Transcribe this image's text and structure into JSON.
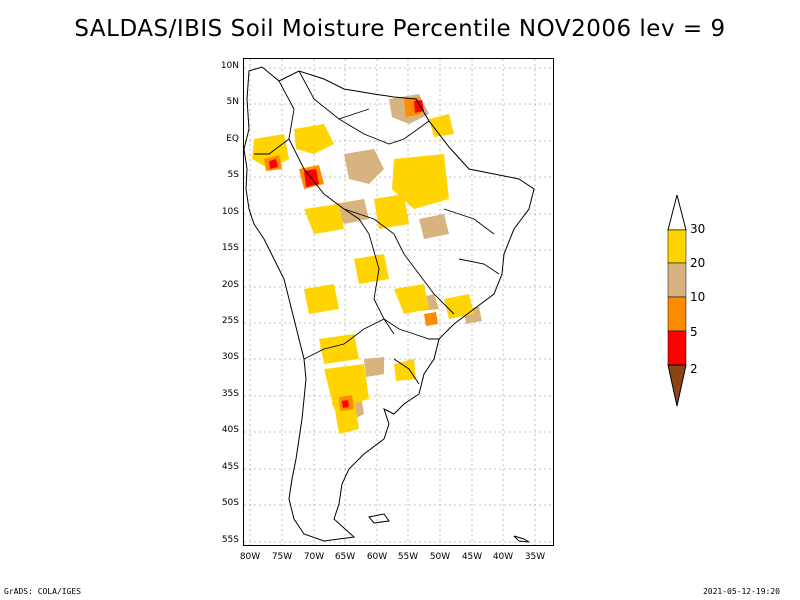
{
  "title": "SALDAS/IBIS Soil Moisture Percentile NOV2006 lev = 9",
  "map": {
    "region": "South America",
    "latitude_labels": [
      "10N",
      "5N",
      "EQ",
      "5S",
      "10S",
      "15S",
      "20S",
      "25S",
      "30S",
      "35S",
      "40S",
      "45S",
      "50S",
      "55S"
    ],
    "longitude_labels": [
      "80W",
      "75W",
      "70W",
      "65W",
      "60W",
      "55W",
      "50W",
      "45W",
      "40W",
      "35W"
    ]
  },
  "legend": {
    "labels": [
      "30",
      "20",
      "10",
      "5",
      "2"
    ],
    "colors": {
      "above_30": "#ffffff",
      "20_30": "#ffd400",
      "10_20": "#d7b47f",
      "5_10": "#ff8c00",
      "2_5": "#ff0000",
      "below_2": "#8b4513"
    }
  },
  "footer": {
    "left": "GrADS: COLA/IGES",
    "right": "2021-05-12-19:20"
  }
}
